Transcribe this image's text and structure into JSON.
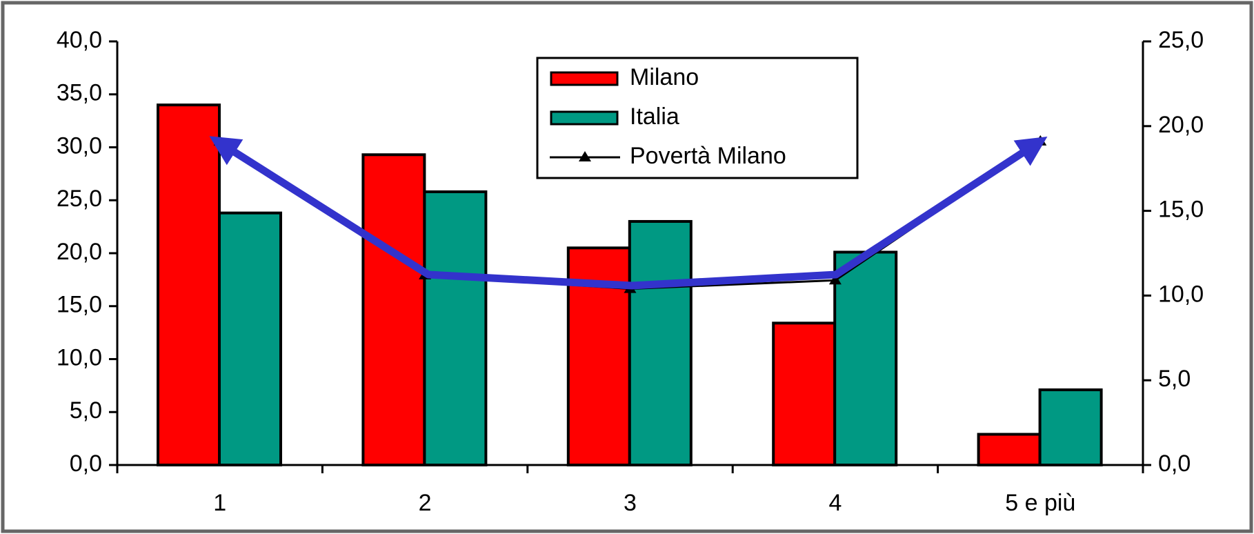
{
  "chart_data": {
    "type": "bar",
    "categories": [
      "1",
      "2",
      "3",
      "4",
      "5 e più"
    ],
    "series": [
      {
        "name": "Milano",
        "color": "#ff0000",
        "values": [
          34.0,
          29.3,
          20.5,
          13.4,
          2.9
        ]
      },
      {
        "name": "Italia",
        "color": "#009983",
        "values": [
          23.8,
          25.8,
          23.0,
          20.1,
          7.1
        ]
      },
      {
        "name": "Povertà Milano",
        "type": "line",
        "axis": "y2",
        "color": "#000000",
        "values": [
          19.1,
          11.2,
          10.4,
          10.9,
          19.1
        ]
      }
    ],
    "ylim": [
      0,
      40
    ],
    "yticks": [
      {
        "value": 0,
        "label": "0,0"
      },
      {
        "value": 5,
        "label": "5,0"
      },
      {
        "value": 10,
        "label": "10,0"
      },
      {
        "value": 15,
        "label": "15,0"
      },
      {
        "value": 20,
        "label": "20,0"
      },
      {
        "value": 25,
        "label": "25,0"
      },
      {
        "value": 30,
        "label": "30,0"
      },
      {
        "value": 35,
        "label": "35,0"
      },
      {
        "value": 40,
        "label": "40,0"
      }
    ],
    "y2lim": [
      0,
      25
    ],
    "y2ticks": [
      {
        "value": 0,
        "label": "0,0"
      },
      {
        "value": 5,
        "label": "5,0"
      },
      {
        "value": 10,
        "label": "10,0"
      },
      {
        "value": 15,
        "label": "15,0"
      },
      {
        "value": 20,
        "label": "20,0"
      },
      {
        "value": 25,
        "label": "25,0"
      }
    ],
    "legend": "top-center"
  }
}
